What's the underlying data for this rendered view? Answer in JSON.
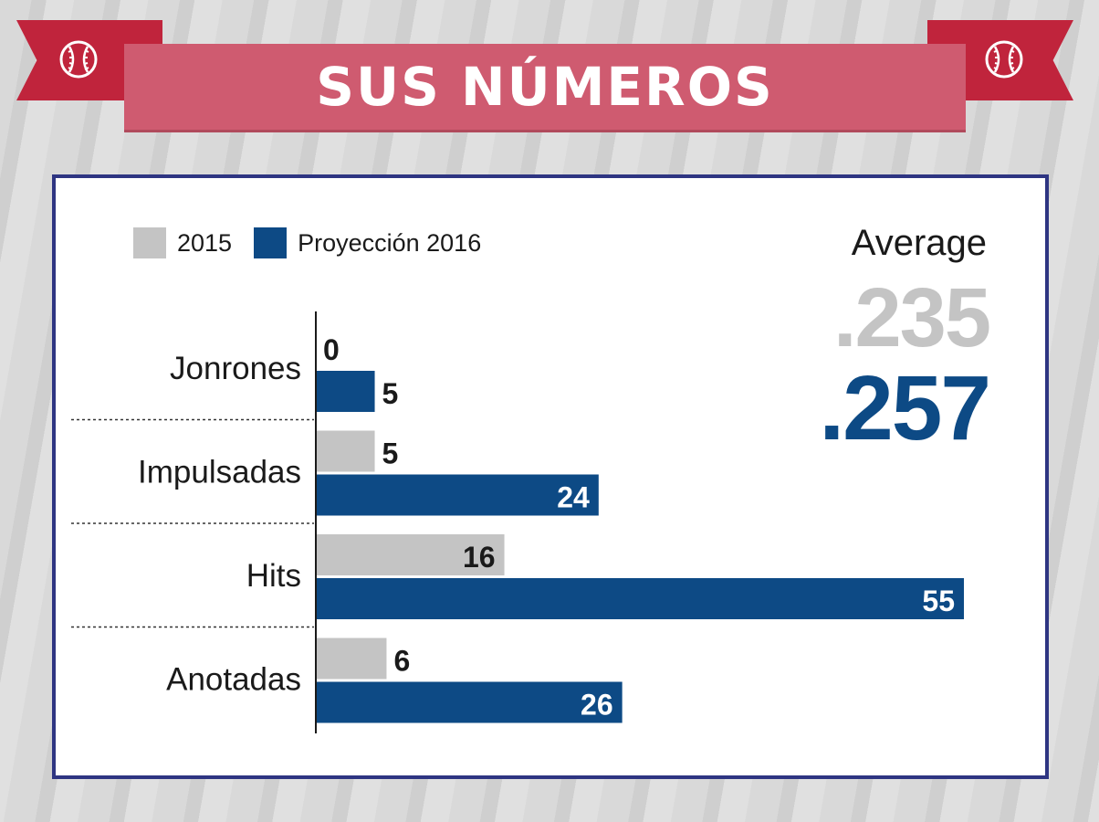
{
  "header": {
    "title": "SUS NÚMEROS"
  },
  "icons": {
    "left": "baseball-icon",
    "right": "baseball-icon"
  },
  "colors": {
    "series_2015": "#c4c4c4",
    "series_2016": "#0d4a85",
    "banner": "#cf5b70",
    "ribbon": "#c0243c",
    "frame": "#2e3582"
  },
  "legend": {
    "items": [
      "2015",
      "Proyección 2016"
    ]
  },
  "average": {
    "label": "Average",
    "value_2015": ".235",
    "value_2016": ".257"
  },
  "chart_data": {
    "type": "bar",
    "orientation": "horizontal",
    "categories": [
      "Jonrones",
      "Impulsadas",
      "Hits",
      "Anotadas"
    ],
    "series": [
      {
        "name": "2015",
        "values": [
          0,
          5,
          16,
          6
        ]
      },
      {
        "name": "Proyección 2016",
        "values": [
          5,
          24,
          55,
          26
        ]
      }
    ],
    "xlim": [
      0,
      55
    ],
    "legend_placement": "top-left",
    "grid": false
  }
}
